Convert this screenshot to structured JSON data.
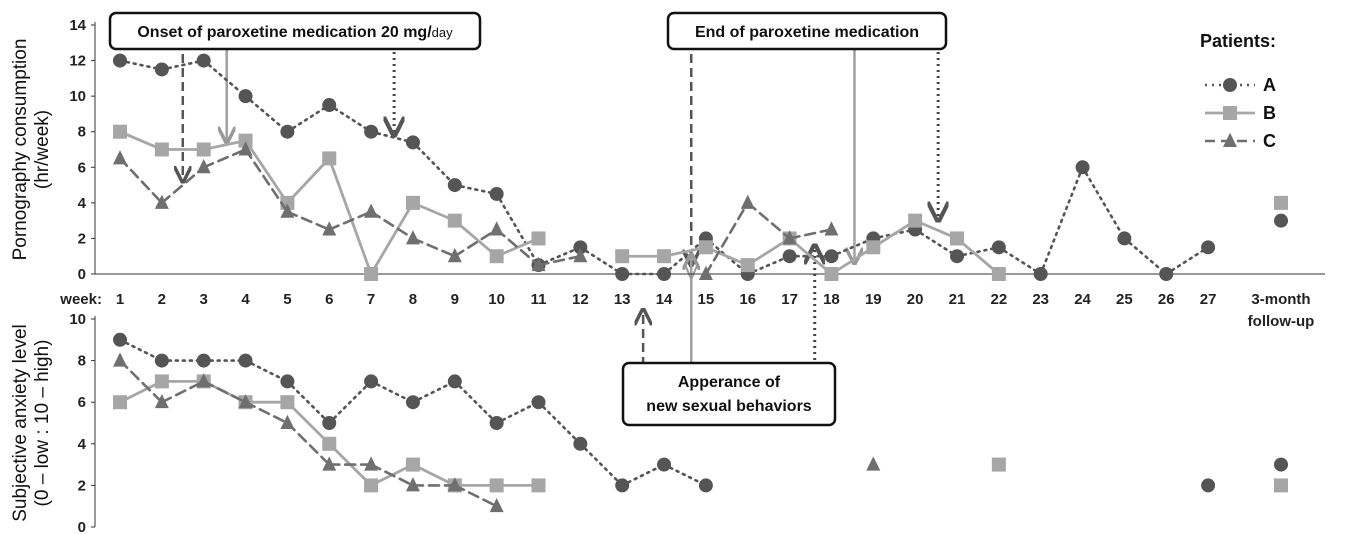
{
  "chart_data": [
    {
      "type": "line",
      "ylabel_lines": [
        "Pornography consumption",
        "(hr/week)"
      ],
      "ylim": [
        0,
        14
      ],
      "yticks": [
        "0",
        "2",
        "4",
        "6",
        "8",
        "10",
        "12",
        "14"
      ],
      "x_axis_prefix": "week:",
      "categories": [
        "1",
        "2",
        "3",
        "4",
        "5",
        "6",
        "7",
        "8",
        "9",
        "10",
        "11",
        "12",
        "13",
        "14",
        "15",
        "16",
        "17",
        "18",
        "19",
        "20",
        "21",
        "22",
        "23",
        "24",
        "25",
        "26",
        "27"
      ],
      "followup_label_lines": [
        "3-month",
        "follow-up"
      ],
      "series": [
        {
          "name": "A",
          "values": [
            12,
            11.5,
            12,
            10,
            8,
            9.5,
            8,
            7.4,
            5,
            4.5,
            0.5,
            1.5,
            0,
            0,
            2,
            0,
            1,
            1,
            2,
            2.5,
            1,
            1.5,
            0,
            6,
            2,
            0,
            1.5
          ],
          "followup": 3
        },
        {
          "name": "B",
          "values": [
            8,
            7,
            7,
            7.5,
            4,
            6.5,
            0,
            4,
            3,
            1,
            2,
            null,
            1,
            1,
            1.5,
            0.5,
            2,
            0,
            1.5,
            3,
            2,
            0,
            null,
            null,
            null,
            null,
            null
          ],
          "followup": 4
        },
        {
          "name": "C",
          "values": [
            6.5,
            4,
            6,
            7,
            3.5,
            2.5,
            3.5,
            2,
            1,
            2.5,
            0.5,
            1,
            null,
            null,
            0,
            4,
            2,
            2.5,
            null,
            null,
            null,
            null,
            null,
            null,
            null,
            null,
            null
          ],
          "followup": null
        }
      ]
    },
    {
      "type": "line",
      "ylabel_lines": [
        "Subjective anxiety level",
        "(0 – low : 10 – high)"
      ],
      "ylim": [
        0,
        10
      ],
      "yticks": [
        "0",
        "2",
        "4",
        "6",
        "8",
        "10"
      ],
      "series": [
        {
          "name": "A",
          "values": [
            9,
            8,
            8,
            8,
            7,
            5,
            7,
            6,
            7,
            5,
            6,
            4,
            2,
            3,
            2,
            null,
            null,
            null,
            null,
            null,
            null,
            null,
            null,
            null,
            null,
            null,
            2
          ],
          "followup": 3
        },
        {
          "name": "B",
          "values": [
            6,
            7,
            7,
            6,
            6,
            4,
            2,
            3,
            2,
            2,
            2,
            null,
            null,
            null,
            null,
            null,
            null,
            null,
            null,
            null,
            null,
            3,
            null,
            null,
            null,
            null,
            null
          ],
          "followup": 2
        },
        {
          "name": "C",
          "values": [
            8,
            6,
            7,
            6,
            5,
            3,
            3,
            2,
            2,
            1,
            null,
            null,
            null,
            null,
            null,
            null,
            null,
            null,
            3,
            null,
            null,
            null,
            null,
            null,
            null,
            null,
            null
          ],
          "followup": null
        }
      ]
    }
  ],
  "legend": {
    "title": "Patients:",
    "items": [
      {
        "name": "A",
        "marker": "circle",
        "dash": "dotted",
        "color": "#555555"
      },
      {
        "name": "B",
        "marker": "square",
        "dash": "solid",
        "color": "#a6a6a6"
      },
      {
        "name": "C",
        "marker": "triangle",
        "dash": "dashed",
        "color": "#6f6f6f"
      }
    ]
  },
  "annotations": {
    "onset": {
      "text": "Onset of paroxetine medication 20 mg/",
      "small": "day"
    },
    "end": {
      "text": "End of paroxetine medication"
    },
    "appearance": {
      "lines": [
        "Apperance of",
        "new sexual behaviors"
      ]
    }
  }
}
